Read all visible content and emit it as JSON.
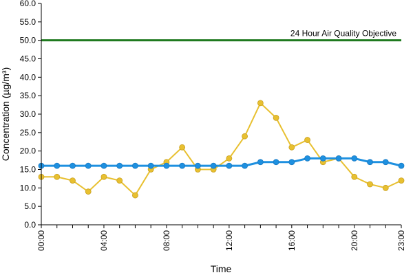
{
  "chart_data": {
    "type": "line",
    "xlabel": "Time",
    "ylabel": "Concentration (µg/m³)",
    "ylim": [
      0,
      60
    ],
    "y_ticks": [
      "0.0",
      "5.0",
      "10.0",
      "15.0",
      "20.0",
      "25.0",
      "30.0",
      "35.0",
      "40.0",
      "45.0",
      "50.0",
      "55.0",
      "60.0"
    ],
    "x": [
      0,
      1,
      2,
      3,
      4,
      5,
      6,
      7,
      8,
      9,
      10,
      11,
      12,
      13,
      14,
      15,
      16,
      17,
      18,
      19,
      20,
      21,
      22,
      23
    ],
    "x_ticks": [
      "00:00",
      "04:00",
      "08:00",
      "12:00",
      "16:00",
      "20:00",
      "23:00"
    ],
    "x_tick_hours": [
      0,
      4,
      8,
      12,
      16,
      20,
      23
    ],
    "objective": {
      "label": "24 Hour Air Quality Objective",
      "value": 50,
      "color": "#1f7a1f"
    },
    "series": [
      {
        "color": "#e8c030",
        "values": [
          13,
          13,
          12,
          9,
          13,
          12,
          8,
          15,
          17,
          21,
          15,
          15,
          18,
          24,
          33,
          29,
          21,
          23,
          17,
          18,
          13,
          11,
          10,
          12
        ]
      },
      {
        "color": "#1e90e0",
        "values": [
          16,
          16,
          16,
          16,
          16,
          16,
          16,
          16,
          16,
          16,
          16,
          16,
          16,
          16,
          17,
          17,
          17,
          18,
          18,
          18,
          18,
          17,
          17,
          16
        ]
      }
    ],
    "grid": false,
    "legend": "none"
  }
}
